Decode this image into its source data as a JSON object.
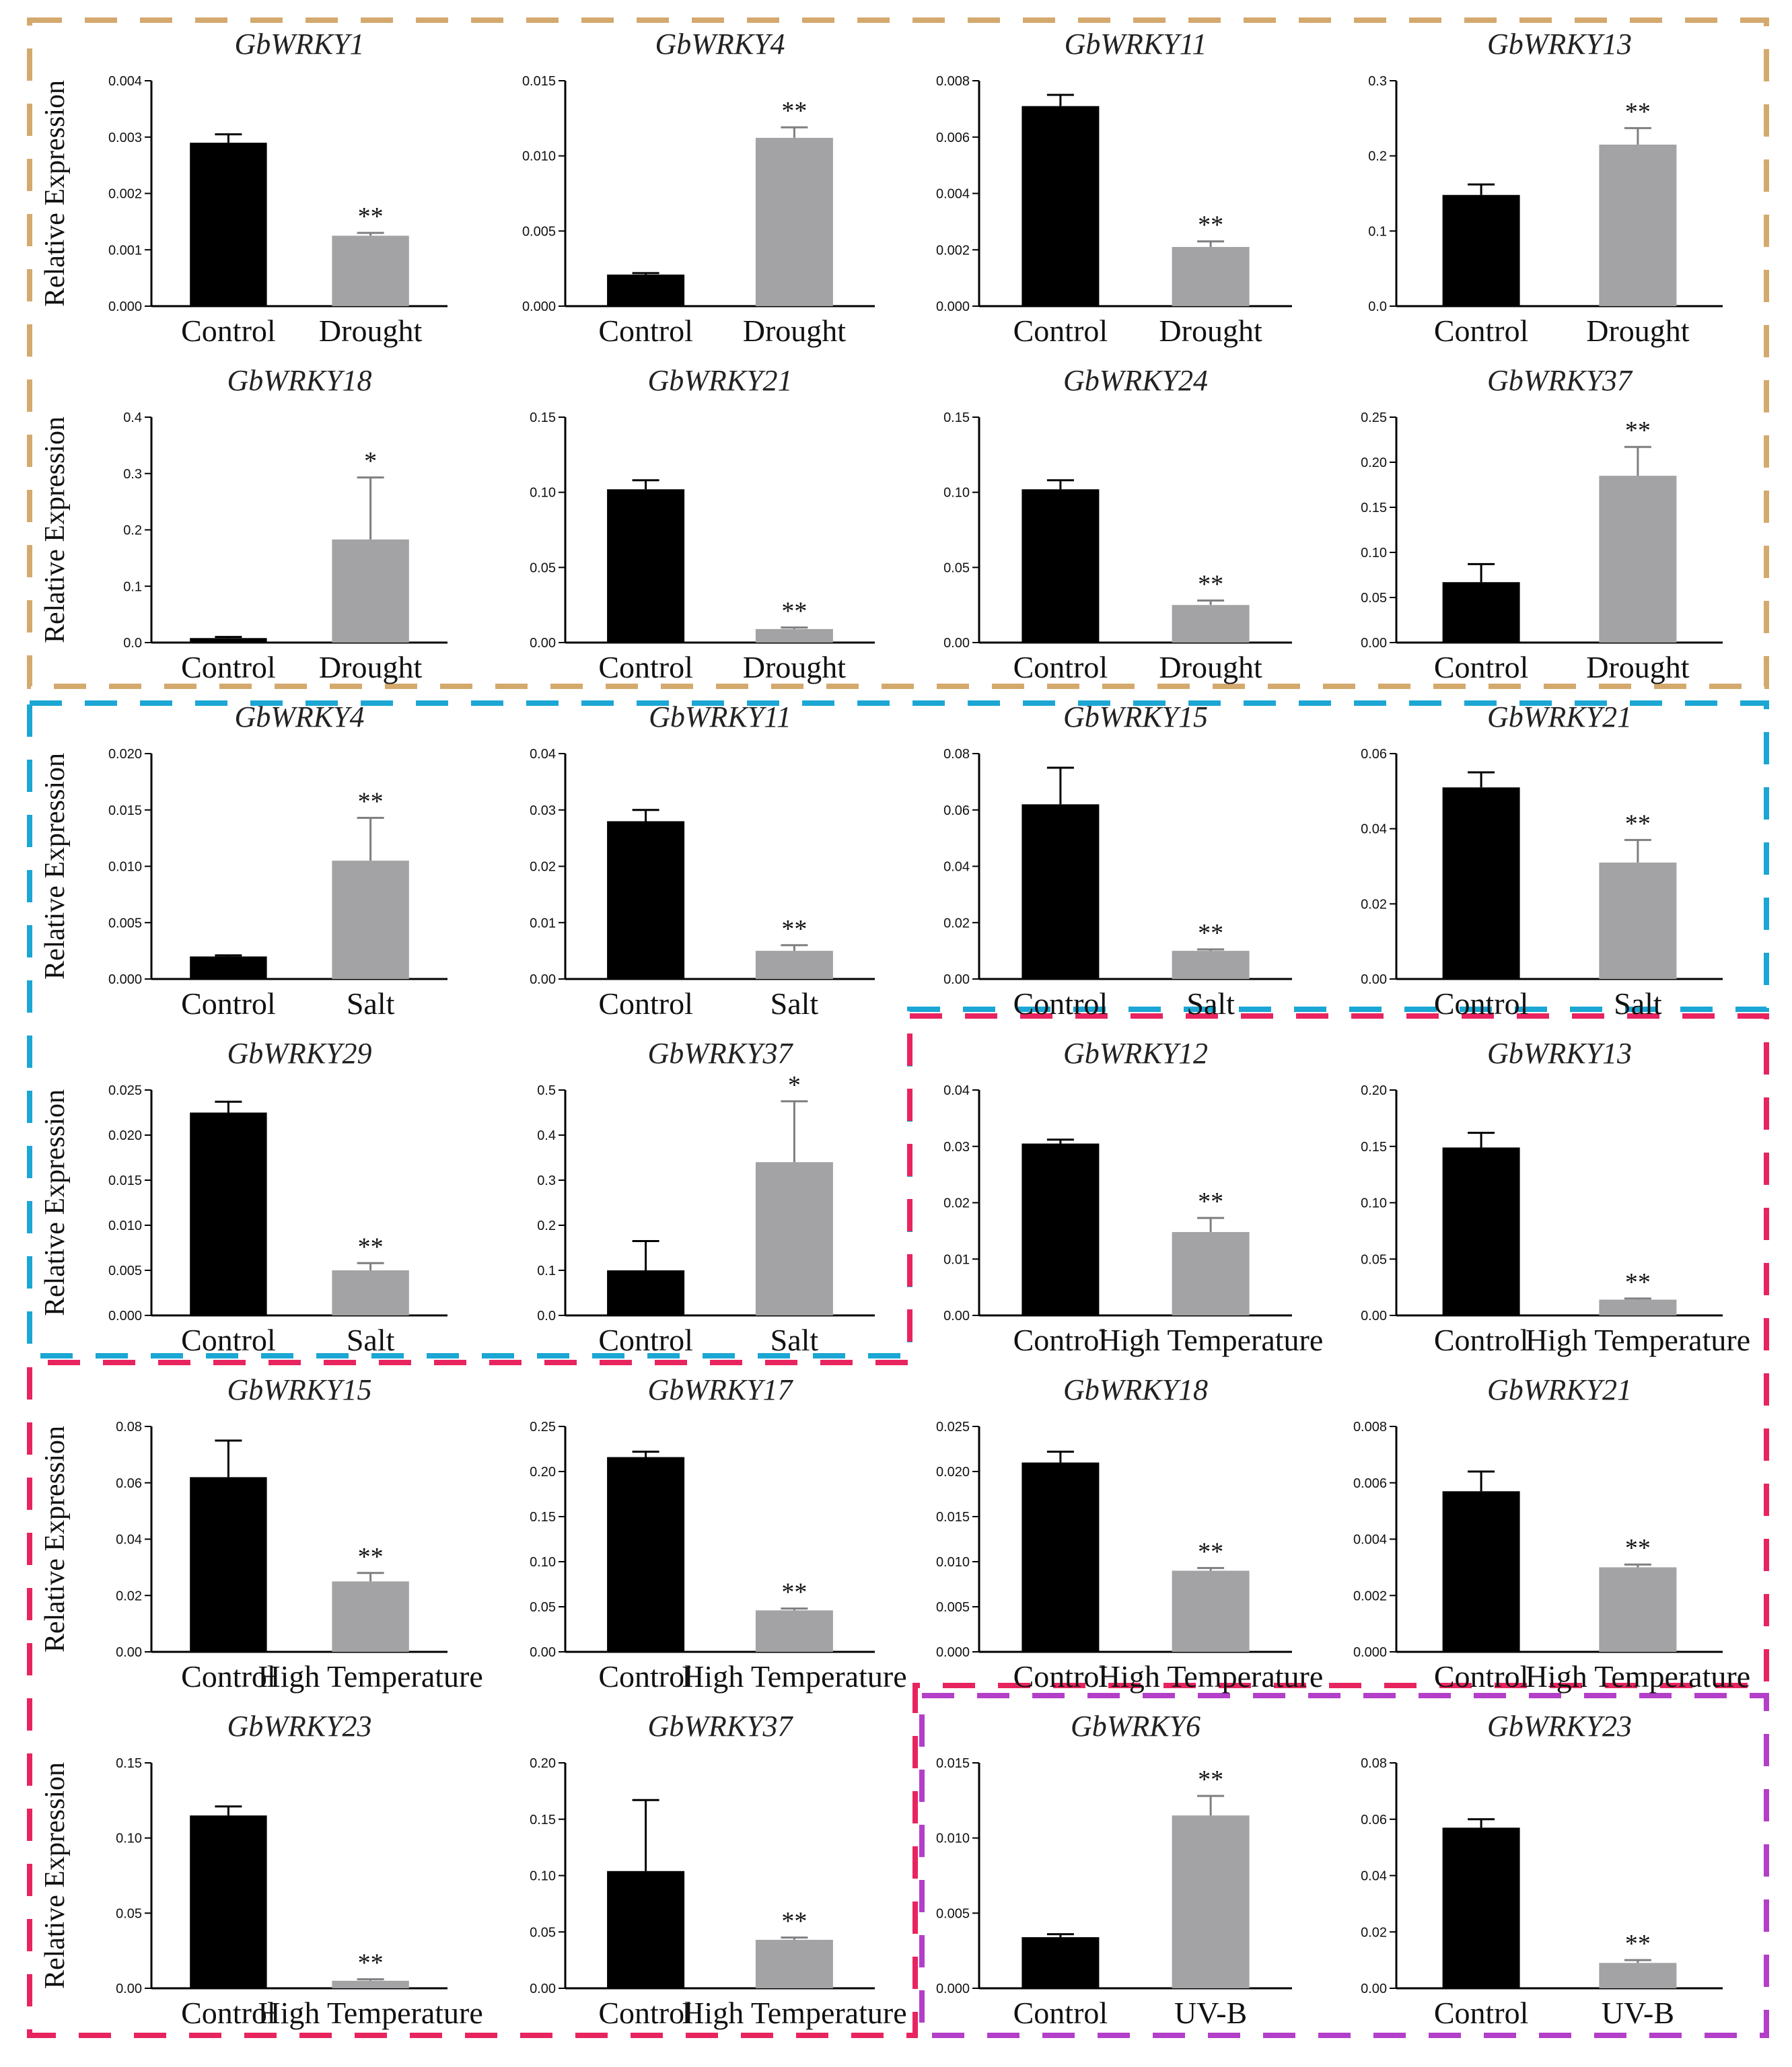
{
  "y_axis_label": "Relative Expression",
  "group_colors": {
    "drought": "#D4A96E",
    "salt": "#1BA6D4",
    "heat": "#E8245F",
    "uvb": "#B33FC9"
  },
  "bar_colors": {
    "control": "#000000",
    "treatment": "#A3A3A5"
  },
  "chart_data": [
    {
      "type": "bar",
      "title": "GbWRKY1",
      "categories": [
        "Control",
        "Drought"
      ],
      "values": [
        0.0029,
        0.00125
      ],
      "errors": [
        0.00015,
        5e-05
      ],
      "significance": [
        "",
        "**"
      ],
      "ylim": [
        0,
        0.004
      ],
      "yticks": [
        "0.000",
        "0.001",
        "0.002",
        "0.003",
        "0.004"
      ]
    },
    {
      "type": "bar",
      "title": "GbWRKY4",
      "categories": [
        "Control",
        "Drought"
      ],
      "values": [
        0.0021,
        0.0112
      ],
      "errors": [
        0.0001,
        0.0007
      ],
      "significance": [
        "",
        "**"
      ],
      "ylim": [
        0,
        0.015
      ],
      "yticks": [
        "0.000",
        "0.005",
        "0.010",
        "0.015"
      ]
    },
    {
      "type": "bar",
      "title": "GbWRKY11",
      "categories": [
        "Control",
        "Drought"
      ],
      "values": [
        0.0071,
        0.0021
      ],
      "errors": [
        0.0004,
        0.0002
      ],
      "significance": [
        "",
        "**"
      ],
      "ylim": [
        0,
        0.008
      ],
      "yticks": [
        "0.000",
        "0.002",
        "0.004",
        "0.006",
        "0.008"
      ]
    },
    {
      "type": "bar",
      "title": "GbWRKY13",
      "categories": [
        "Control",
        "Drought"
      ],
      "values": [
        0.148,
        0.215
      ],
      "errors": [
        0.014,
        0.022
      ],
      "significance": [
        "",
        "**"
      ],
      "ylim": [
        0,
        0.3
      ],
      "yticks": [
        "0.0",
        "0.1",
        "0.2",
        "0.3"
      ]
    },
    {
      "type": "bar",
      "title": "GbWRKY18",
      "categories": [
        "Control",
        "Drought"
      ],
      "values": [
        0.008,
        0.183
      ],
      "errors": [
        0.002,
        0.11
      ],
      "significance": [
        "",
        "*"
      ],
      "ylim": [
        0,
        0.4
      ],
      "yticks": [
        "0.0",
        "0.1",
        "0.2",
        "0.3",
        "0.4"
      ]
    },
    {
      "type": "bar",
      "title": "GbWRKY21",
      "categories": [
        "Control",
        "Drought"
      ],
      "values": [
        0.102,
        0.009
      ],
      "errors": [
        0.006,
        0.001
      ],
      "significance": [
        "",
        "**"
      ],
      "ylim": [
        0,
        0.15
      ],
      "yticks": [
        "0.00",
        "0.05",
        "0.10",
        "0.15"
      ]
    },
    {
      "type": "bar",
      "title": "GbWRKY24",
      "categories": [
        "Control",
        "Drought"
      ],
      "values": [
        0.102,
        0.025
      ],
      "errors": [
        0.006,
        0.003
      ],
      "significance": [
        "",
        "**"
      ],
      "ylim": [
        0,
        0.15
      ],
      "yticks": [
        "0.00",
        "0.05",
        "0.10",
        "0.15"
      ]
    },
    {
      "type": "bar",
      "title": "GbWRKY37",
      "categories": [
        "Control",
        "Drought"
      ],
      "values": [
        0.067,
        0.185
      ],
      "errors": [
        0.02,
        0.032
      ],
      "significance": [
        "",
        "**"
      ],
      "ylim": [
        0,
        0.25
      ],
      "yticks": [
        "0.00",
        "0.05",
        "0.10",
        "0.15",
        "0.20",
        "0.25"
      ]
    },
    {
      "type": "bar",
      "title": "GbWRKY4",
      "categories": [
        "Control",
        "Salt"
      ],
      "values": [
        0.002,
        0.0105
      ],
      "errors": [
        0.0001,
        0.0038
      ],
      "significance": [
        "",
        "**"
      ],
      "ylim": [
        0,
        0.02
      ],
      "yticks": [
        "0.000",
        "0.005",
        "0.010",
        "0.015",
        "0.020"
      ]
    },
    {
      "type": "bar",
      "title": "GbWRKY11",
      "categories": [
        "Control",
        "Salt"
      ],
      "values": [
        0.028,
        0.005
      ],
      "errors": [
        0.002,
        0.001
      ],
      "significance": [
        "",
        "**"
      ],
      "ylim": [
        0,
        0.04
      ],
      "yticks": [
        "0.00",
        "0.01",
        "0.02",
        "0.03",
        "0.04"
      ]
    },
    {
      "type": "bar",
      "title": "GbWRKY15",
      "categories": [
        "Control",
        "Salt"
      ],
      "values": [
        0.062,
        0.01
      ],
      "errors": [
        0.013,
        0.0005
      ],
      "significance": [
        "",
        "**"
      ],
      "ylim": [
        0,
        0.08
      ],
      "yticks": [
        "0.00",
        "0.02",
        "0.04",
        "0.06",
        "0.08"
      ]
    },
    {
      "type": "bar",
      "title": "GbWRKY21",
      "categories": [
        "Control",
        "Salt"
      ],
      "values": [
        0.051,
        0.031
      ],
      "errors": [
        0.004,
        0.006
      ],
      "significance": [
        "",
        "**"
      ],
      "ylim": [
        0,
        0.06
      ],
      "yticks": [
        "0.00",
        "0.02",
        "0.04",
        "0.06"
      ]
    },
    {
      "type": "bar",
      "title": "GbWRKY29",
      "categories": [
        "Control",
        "Salt"
      ],
      "values": [
        0.0225,
        0.005
      ],
      "errors": [
        0.0012,
        0.0008
      ],
      "significance": [
        "",
        "**"
      ],
      "ylim": [
        0,
        0.025
      ],
      "yticks": [
        "0.000",
        "0.005",
        "0.010",
        "0.015",
        "0.020",
        "0.025"
      ]
    },
    {
      "type": "bar",
      "title": "GbWRKY37",
      "categories": [
        "Control",
        "Salt"
      ],
      "values": [
        0.1,
        0.34
      ],
      "errors": [
        0.065,
        0.135
      ],
      "significance": [
        "",
        "*"
      ],
      "ylim": [
        0,
        0.5
      ],
      "yticks": [
        "0.0",
        "0.1",
        "0.2",
        "0.3",
        "0.4",
        "0.5"
      ]
    },
    {
      "type": "bar",
      "title": "GbWRKY12",
      "categories": [
        "Control",
        "High Temperature"
      ],
      "values": [
        0.0305,
        0.0148
      ],
      "errors": [
        0.0007,
        0.0025
      ],
      "significance": [
        "",
        "**"
      ],
      "ylim": [
        0,
        0.04
      ],
      "yticks": [
        "0.00",
        "0.01",
        "0.02",
        "0.03",
        "0.04"
      ]
    },
    {
      "type": "bar",
      "title": "GbWRKY13",
      "categories": [
        "Control",
        "High Temperature"
      ],
      "values": [
        0.149,
        0.014
      ],
      "errors": [
        0.013,
        0.001
      ],
      "significance": [
        "",
        "**"
      ],
      "ylim": [
        0,
        0.2
      ],
      "yticks": [
        "0.00",
        "0.05",
        "0.10",
        "0.15",
        "0.20"
      ]
    },
    {
      "type": "bar",
      "title": "GbWRKY15",
      "categories": [
        "Control",
        "High Temperature"
      ],
      "values": [
        0.062,
        0.025
      ],
      "errors": [
        0.013,
        0.003
      ],
      "significance": [
        "",
        "**"
      ],
      "ylim": [
        0,
        0.08
      ],
      "yticks": [
        "0.00",
        "0.02",
        "0.04",
        "0.06",
        "0.08"
      ]
    },
    {
      "type": "bar",
      "title": "GbWRKY17",
      "categories": [
        "Control",
        "High Temperature"
      ],
      "values": [
        0.216,
        0.046
      ],
      "errors": [
        0.006,
        0.002
      ],
      "significance": [
        "",
        "**"
      ],
      "ylim": [
        0,
        0.25
      ],
      "yticks": [
        "0.00",
        "0.05",
        "0.10",
        "0.15",
        "0.20",
        "0.25"
      ]
    },
    {
      "type": "bar",
      "title": "GbWRKY18",
      "categories": [
        "Control",
        "High Temperature"
      ],
      "values": [
        0.021,
        0.009
      ],
      "errors": [
        0.0012,
        0.0003
      ],
      "significance": [
        "",
        "**"
      ],
      "ylim": [
        0,
        0.025
      ],
      "yticks": [
        "0.000",
        "0.005",
        "0.010",
        "0.015",
        "0.020",
        "0.025"
      ]
    },
    {
      "type": "bar",
      "title": "GbWRKY21",
      "categories": [
        "Control",
        "High Temperature"
      ],
      "values": [
        0.0057,
        0.003
      ],
      "errors": [
        0.0007,
        0.0001
      ],
      "significance": [
        "",
        "**"
      ],
      "ylim": [
        0,
        0.008
      ],
      "yticks": [
        "0.000",
        "0.002",
        "0.004",
        "0.006",
        "0.008"
      ]
    },
    {
      "type": "bar",
      "title": "GbWRKY23",
      "categories": [
        "Control",
        "High Temperature"
      ],
      "values": [
        0.115,
        0.005
      ],
      "errors": [
        0.006,
        0.001
      ],
      "significance": [
        "",
        "**"
      ],
      "ylim": [
        0,
        0.15
      ],
      "yticks": [
        "0.00",
        "0.05",
        "0.10",
        "0.15"
      ]
    },
    {
      "type": "bar",
      "title": "GbWRKY37",
      "categories": [
        "Control",
        "High Temperature"
      ],
      "values": [
        0.104,
        0.043
      ],
      "errors": [
        0.063,
        0.002
      ],
      "significance": [
        "",
        "**"
      ],
      "ylim": [
        0,
        0.2
      ],
      "yticks": [
        "0.00",
        "0.05",
        "0.10",
        "0.15",
        "0.20"
      ]
    },
    {
      "type": "bar",
      "title": "GbWRKY6",
      "categories": [
        "Control",
        "UV-B"
      ],
      "values": [
        0.0034,
        0.0115
      ],
      "errors": [
        0.0002,
        0.0013
      ],
      "significance": [
        "",
        "**"
      ],
      "ylim": [
        0,
        0.015
      ],
      "yticks": [
        "0.000",
        "0.005",
        "0.010",
        "0.015"
      ]
    },
    {
      "type": "bar",
      "title": "GbWRKY23",
      "categories": [
        "Control",
        "UV-B"
      ],
      "values": [
        0.057,
        0.009
      ],
      "errors": [
        0.003,
        0.001
      ],
      "significance": [
        "",
        "**"
      ],
      "ylim": [
        0,
        0.08
      ],
      "yticks": [
        "0.00",
        "0.02",
        "0.04",
        "0.06",
        "0.08"
      ]
    }
  ]
}
